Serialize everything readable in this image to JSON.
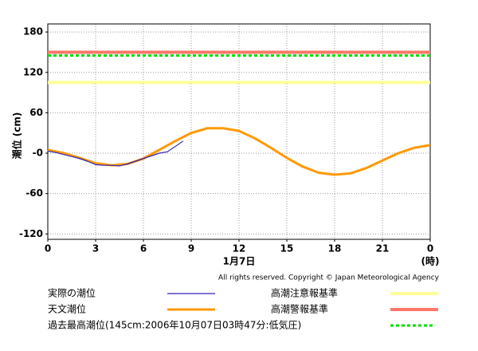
{
  "chart_data": {
    "type": "line",
    "ylabel": "潮位 (cm)",
    "xlabel": "1月7日",
    "xunit": "(時)",
    "copyright": "All rights reserved. Copyright © Japan Meteorological Agency",
    "xlim": [
      0,
      24
    ],
    "xticks": [
      0,
      3,
      6,
      9,
      12,
      15,
      18,
      21,
      {
        "value": 24,
        "label": "0"
      }
    ],
    "ylim": [
      -128,
      192
    ],
    "yticks": [
      -120,
      -60,
      {
        "value": 0,
        "label": "-0"
      },
      60,
      120,
      180
    ],
    "grid": true,
    "series": [
      {
        "name": "実際の潮位",
        "color": "#3322bb",
        "width": 1.2,
        "x": [
          0,
          0.5,
          1,
          1.5,
          2,
          2.5,
          3,
          3.5,
          4,
          4.5,
          5,
          5.5,
          6,
          6.5,
          7,
          7.5,
          8,
          8.5
        ],
        "values": [
          3,
          1,
          -2,
          -5,
          -8,
          -12,
          -17,
          -18,
          -18,
          -19,
          -16,
          -12,
          -8,
          -4,
          0,
          2,
          10,
          18
        ]
      },
      {
        "name": "天文潮位",
        "color": "#ff9900",
        "width": 3,
        "x": [
          0,
          1,
          2,
          3,
          4,
          5,
          6,
          7,
          8,
          9,
          10,
          11,
          12,
          13,
          14,
          15,
          16,
          17,
          18,
          19,
          20,
          21,
          22,
          23,
          24
        ],
        "values": [
          5,
          0,
          -7,
          -15,
          -18,
          -16,
          -8,
          5,
          18,
          30,
          37,
          37,
          33,
          22,
          8,
          -7,
          -20,
          -29,
          -32,
          -30,
          -22,
          -11,
          0,
          8,
          12
        ]
      }
    ],
    "reference_lines": [
      {
        "name": "高潮注意報基準",
        "value": 105,
        "color": "#ffff99",
        "style": "solid"
      },
      {
        "name": "高潮警報基準",
        "value": 150,
        "color": "#ff7766",
        "style": "solid"
      },
      {
        "name": "過去最高潮位(145cm:2006年10月07日03時47分:低気圧)",
        "value": 145,
        "color": "#00dd00",
        "style": "dotted"
      }
    ]
  }
}
